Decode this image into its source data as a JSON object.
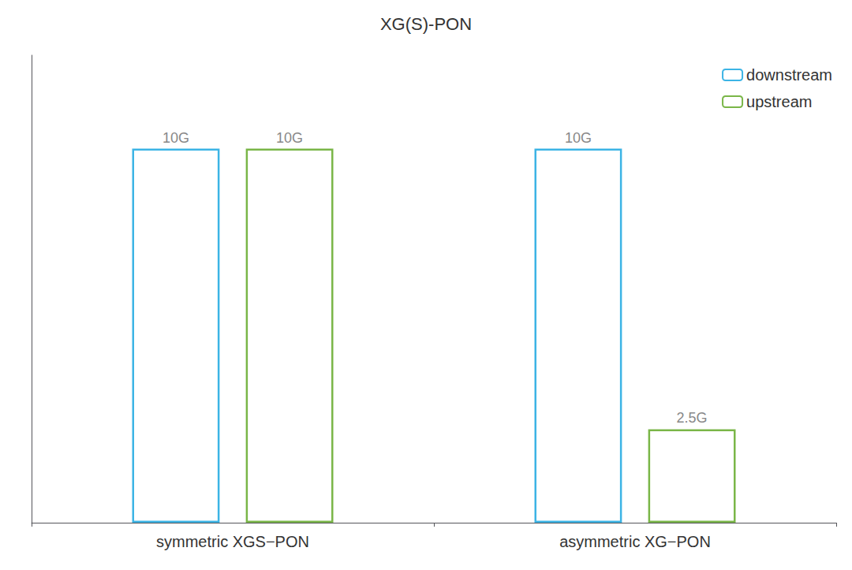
{
  "chart_data": {
    "type": "bar",
    "title": "XG(S)-PON",
    "categories": [
      "symmetric XGS−PON",
      "asymmetric XG−PON"
    ],
    "series": [
      {
        "name": "downstream",
        "color": "#3cb4e5",
        "values": [
          10,
          10
        ],
        "value_labels": [
          "10G",
          "10G"
        ]
      },
      {
        "name": "upstream",
        "color": "#7ab648",
        "values": [
          10,
          2.5
        ],
        "value_labels": [
          "10G",
          "2.5G"
        ]
      }
    ],
    "ylim": [
      0,
      12.5
    ],
    "tick_labels": "x",
    "grid": false,
    "legend": "upper right",
    "data_labels": true
  }
}
